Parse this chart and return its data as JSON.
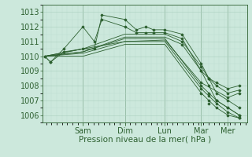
{
  "bg_color": "#cce8dc",
  "grid_color_major": "#aacfbf",
  "grid_color_minor": "#bdddd0",
  "line_color": "#2d6030",
  "marker_color": "#2d6030",
  "xlabel": "Pression niveau de la mer( hPa )",
  "xlabel_fontsize": 7.5,
  "tick_fontsize": 7,
  "ylim": [
    1005.5,
    1013.5
  ],
  "yticks": [
    1006,
    1007,
    1008,
    1009,
    1010,
    1011,
    1012,
    1013
  ],
  "xlim_left": -0.01,
  "xlim_right": 1.06,
  "day_labels": [
    "Sam",
    "Dim",
    "Lun",
    "Mar",
    "Mer"
  ],
  "day_positions": [
    0.2,
    0.42,
    0.63,
    0.82,
    0.96
  ],
  "series": [
    {
      "x": [
        0.0,
        0.03,
        0.1,
        0.2,
        0.26,
        0.3,
        0.42,
        0.48,
        0.53,
        0.57,
        0.63,
        0.72,
        0.82,
        0.86,
        0.9,
        0.96,
        1.02
      ],
      "y": [
        1010.0,
        1009.6,
        1010.5,
        1012.0,
        1011.0,
        1012.5,
        1012.0,
        1011.6,
        1011.6,
        1011.6,
        1011.6,
        1011.2,
        1009.0,
        1008.5,
        1008.0,
        1007.5,
        1007.7
      ]
    },
    {
      "x": [
        0.0,
        0.03,
        0.1,
        0.2,
        0.26,
        0.3,
        0.42,
        0.48,
        0.53,
        0.57,
        0.63,
        0.72,
        0.82,
        0.86,
        0.9,
        0.96,
        1.02
      ],
      "y": [
        1010.0,
        1009.6,
        1010.3,
        1010.5,
        1010.5,
        1012.8,
        1012.5,
        1011.8,
        1012.0,
        1011.8,
        1011.8,
        1011.5,
        1009.5,
        1008.5,
        1008.2,
        1007.8,
        1008.0
      ]
    },
    {
      "x": [
        0.0,
        0.2,
        0.42,
        0.63,
        0.82,
        0.96,
        1.02
      ],
      "y": [
        1010.0,
        1010.5,
        1011.0,
        1011.1,
        1008.2,
        1007.2,
        1007.5
      ]
    },
    {
      "x": [
        0.0,
        0.2,
        0.42,
        0.63,
        0.82,
        0.9,
        0.96,
        1.02
      ],
      "y": [
        1010.0,
        1010.3,
        1011.2,
        1011.2,
        1008.0,
        1007.0,
        1006.5,
        1006.0
      ]
    },
    {
      "x": [
        0.0,
        0.2,
        0.42,
        0.63,
        0.82,
        0.9,
        0.96,
        1.02
      ],
      "y": [
        1010.0,
        1010.2,
        1011.0,
        1011.0,
        1007.8,
        1006.8,
        1006.2,
        1005.8
      ]
    },
    {
      "x": [
        0.0,
        0.2,
        0.42,
        0.63,
        0.82,
        0.9,
        0.96,
        1.02
      ],
      "y": [
        1010.0,
        1010.0,
        1010.8,
        1010.8,
        1007.5,
        1006.5,
        1006.0,
        1005.8
      ]
    },
    {
      "x": [
        0.0,
        0.2,
        0.42,
        0.57,
        0.63,
        0.72,
        0.82,
        0.86,
        0.9,
        0.96,
        1.02
      ],
      "y": [
        1010.0,
        1010.5,
        1011.5,
        1011.5,
        1011.5,
        1011.0,
        1009.3,
        1008.5,
        1007.5,
        1007.0,
        1006.5
      ]
    },
    {
      "x": [
        0.0,
        0.2,
        0.42,
        0.57,
        0.63,
        0.72,
        0.82,
        0.86,
        0.9,
        0.96,
        1.02
      ],
      "y": [
        1010.0,
        1010.3,
        1011.3,
        1011.3,
        1011.3,
        1010.8,
        1009.0,
        1008.0,
        1007.0,
        1006.5,
        1006.0
      ]
    }
  ],
  "marker_x_series": [
    [
      0.0,
      0.03,
      0.1,
      0.2,
      0.26,
      0.3,
      0.42,
      0.48,
      0.53,
      0.57,
      0.63,
      0.72,
      0.82,
      0.86,
      0.9,
      0.96,
      1.02
    ],
    [
      0.0,
      0.03,
      0.1,
      0.2,
      0.26,
      0.3,
      0.42,
      0.48,
      0.53,
      0.57,
      0.63,
      0.72,
      0.82,
      0.86,
      0.9,
      0.96,
      1.02
    ],
    [
      0.82,
      0.86,
      0.9,
      0.96,
      1.02
    ],
    [
      0.82,
      0.86,
      0.9,
      0.96,
      1.02
    ],
    [
      0.82,
      0.86,
      0.9,
      0.96,
      1.02
    ],
    [
      0.82,
      0.86,
      0.9,
      0.96,
      1.02
    ],
    [
      0.72,
      0.82,
      0.86,
      0.9,
      0.96,
      1.02
    ],
    [
      0.72,
      0.82,
      0.86,
      0.9,
      0.96,
      1.02
    ]
  ],
  "marker_y_series": [
    [
      1010.0,
      1009.6,
      1010.5,
      1012.0,
      1011.0,
      1012.5,
      1012.0,
      1011.6,
      1011.6,
      1011.6,
      1011.6,
      1011.2,
      1009.0,
      1008.5,
      1008.0,
      1007.5,
      1007.7
    ],
    [
      1010.0,
      1009.6,
      1010.3,
      1010.5,
      1010.5,
      1012.8,
      1012.5,
      1011.8,
      1012.0,
      1011.8,
      1011.8,
      1011.5,
      1009.5,
      1008.5,
      1008.2,
      1007.8,
      1008.0
    ],
    [
      1008.2,
      1007.5,
      1007.0,
      1007.2,
      1007.5
    ],
    [
      1008.0,
      1007.3,
      1007.0,
      1006.5,
      1006.0
    ],
    [
      1007.8,
      1007.0,
      1006.8,
      1006.2,
      1005.8
    ],
    [
      1007.5,
      1006.8,
      1006.5,
      1006.0,
      1005.8
    ],
    [
      1011.0,
      1009.3,
      1008.5,
      1007.5,
      1007.0,
      1006.5
    ],
    [
      1010.8,
      1009.0,
      1008.0,
      1007.0,
      1006.5,
      1006.0
    ]
  ]
}
